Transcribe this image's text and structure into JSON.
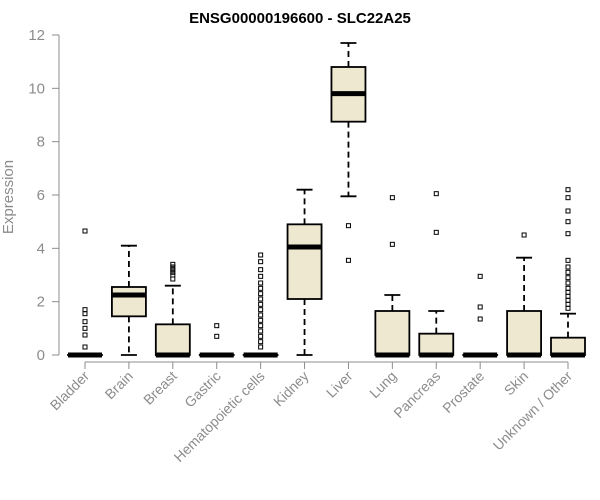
{
  "chart_data": {
    "type": "box",
    "title": "ENSG00000196600 - SLC22A25",
    "ylabel": "Expression",
    "xlabel": "",
    "ylim": [
      0,
      12
    ],
    "yticks": [
      0,
      2,
      4,
      6,
      8,
      10,
      12
    ],
    "grid": false,
    "legend": "none",
    "colors": {
      "box_fill": "#efe8d0",
      "stroke": "#000000",
      "axis": "#8c8c8c",
      "text": "#8c8c8c"
    },
    "categories": [
      "Bladder",
      "Brain",
      "Breast",
      "Gastric",
      "Hematopoietic cells",
      "Kidney",
      "Liver",
      "Lung",
      "Pancreas",
      "Prostate",
      "Skin",
      "Unknown / Other"
    ],
    "boxes": [
      {
        "q1": 0,
        "median": 0,
        "q3": 0,
        "whisker_low": 0,
        "whisker_high": 0,
        "outliers": [
          0.3,
          0.75,
          1.0,
          1.25,
          1.55,
          1.7,
          4.65
        ]
      },
      {
        "q1": 1.45,
        "median": 2.25,
        "q3": 2.55,
        "whisker_low": 0,
        "whisker_high": 4.1,
        "outliers": []
      },
      {
        "q1": 0,
        "median": 0,
        "q3": 1.15,
        "whisker_low": 0,
        "whisker_high": 2.6,
        "outliers": [
          2.85,
          3.0,
          3.1,
          3.2,
          3.3,
          3.4
        ]
      },
      {
        "q1": 0,
        "median": 0,
        "q3": 0,
        "whisker_low": 0,
        "whisker_high": 0,
        "outliers": [
          0.7,
          1.1
        ]
      },
      {
        "q1": 0,
        "median": 0,
        "q3": 0,
        "whisker_low": 0,
        "whisker_high": 0,
        "outliers": [
          0.3,
          0.5,
          0.7,
          0.9,
          1.1,
          1.3,
          1.5,
          1.7,
          1.9,
          2.1,
          2.3,
          2.5,
          2.7,
          2.95,
          3.2,
          3.5,
          3.75
        ]
      },
      {
        "q1": 2.1,
        "median": 4.05,
        "q3": 4.9,
        "whisker_low": 0,
        "whisker_high": 6.2,
        "outliers": []
      },
      {
        "q1": 8.75,
        "median": 9.8,
        "q3": 10.8,
        "whisker_low": 5.95,
        "whisker_high": 11.7,
        "outliers": [
          3.55,
          4.85
        ]
      },
      {
        "q1": 0,
        "median": 0,
        "q3": 1.65,
        "whisker_low": 0,
        "whisker_high": 2.25,
        "outliers": [
          4.15,
          5.9
        ]
      },
      {
        "q1": 0,
        "median": 0,
        "q3": 0.8,
        "whisker_low": 0,
        "whisker_high": 1.65,
        "outliers": [
          4.6,
          6.05
        ]
      },
      {
        "q1": 0,
        "median": 0,
        "q3": 0,
        "whisker_low": 0,
        "whisker_high": 0,
        "outliers": [
          1.35,
          1.8,
          2.95
        ]
      },
      {
        "q1": 0,
        "median": 0,
        "q3": 1.65,
        "whisker_low": 0,
        "whisker_high": 3.65,
        "outliers": [
          4.5
        ]
      },
      {
        "q1": 0,
        "median": 0,
        "q3": 0.65,
        "whisker_low": 0,
        "whisker_high": 1.55,
        "outliers": [
          1.75,
          1.9,
          2.05,
          2.2,
          2.35,
          2.5,
          2.7,
          2.9,
          3.1,
          3.3,
          3.55,
          4.55,
          5.0,
          5.4,
          5.9,
          6.2
        ]
      }
    ]
  }
}
